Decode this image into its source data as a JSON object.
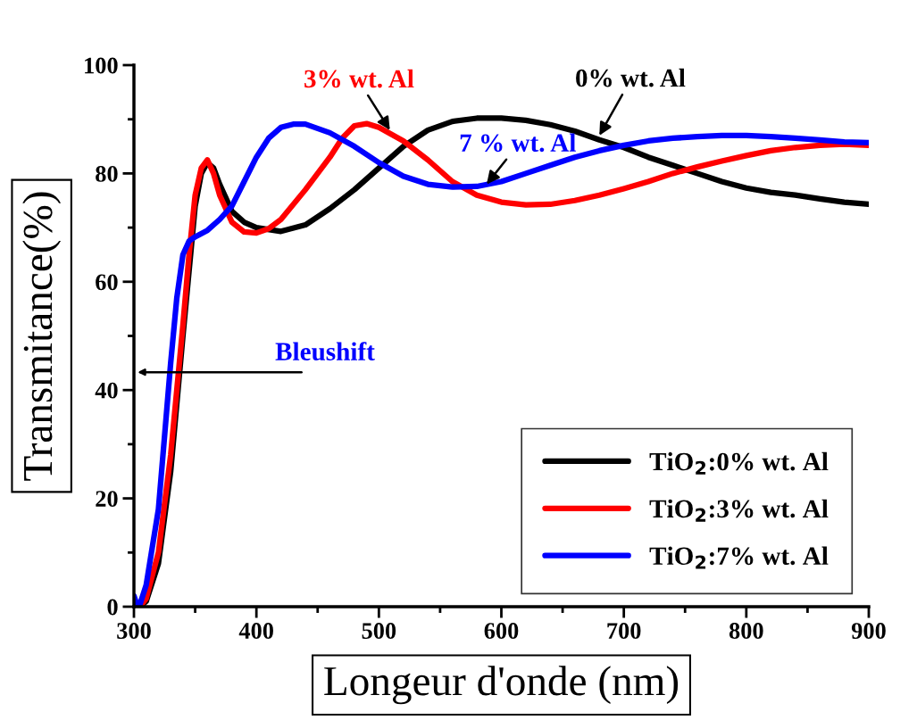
{
  "chart_data": {
    "type": "line",
    "xlabel": "Longeur d'onde (nm)",
    "ylabel": "Transmitance(%)",
    "xlim": [
      300,
      900
    ],
    "xticks": [
      300,
      400,
      500,
      600,
      700,
      800,
      900
    ],
    "ylim": [
      0,
      100
    ],
    "yticks": [
      0,
      20,
      40,
      60,
      80,
      100
    ],
    "grid": false,
    "legend": "bottom right",
    "line_style": "solid",
    "marker": "none",
    "x": [
      300,
      305,
      310,
      320,
      330,
      340,
      345,
      350,
      355,
      360,
      365,
      370,
      380,
      390,
      400,
      420,
      440,
      460,
      480,
      500,
      520,
      540,
      560,
      580,
      600,
      620,
      640,
      660,
      680,
      700,
      720,
      740,
      760,
      780,
      800,
      820,
      840,
      860,
      880,
      900
    ],
    "series": [
      {
        "name": "TiO$_{2}$:0% wt. Al",
        "color": "#000000",
        "values": [
          0,
          0,
          1,
          8,
          25,
          50,
          62,
          74,
          80,
          82,
          81,
          78,
          73,
          71,
          70,
          69.3,
          70.5,
          73.5,
          77,
          81,
          85,
          88,
          89.6,
          90.2,
          90.2,
          89.8,
          89,
          87.8,
          86.2,
          84.8,
          83,
          81.5,
          80,
          78.5,
          77.3,
          76.5,
          76,
          75.3,
          74.7,
          74.3
        ]
      },
      {
        "name": "TiO$_{2}$:3% wt. Al",
        "color": "#ff0000",
        "x": [
          300,
          305,
          310,
          320,
          330,
          340,
          345,
          350,
          355,
          360,
          365,
          370,
          380,
          390,
          400,
          410,
          420,
          440,
          460,
          470,
          480,
          490,
          500,
          520,
          540,
          560,
          580,
          600,
          620,
          640,
          660,
          680,
          700,
          720,
          740,
          760,
          780,
          800,
          820,
          840,
          860,
          880,
          900
        ],
        "values": [
          0,
          0,
          1.5,
          10,
          28,
          52,
          65,
          76,
          81,
          82.5,
          80,
          76,
          71,
          69.2,
          69,
          69.8,
          71.5,
          77,
          83,
          86.5,
          88.8,
          89.2,
          88.5,
          86,
          82.5,
          78.5,
          76,
          74.7,
          74.2,
          74.3,
          75,
          76,
          77.2,
          78.5,
          80,
          81.2,
          82.3,
          83.3,
          84.2,
          84.8,
          85.2,
          85.4,
          85.2
        ]
      },
      {
        "name": "TiO$_{2}$:7% wt. Al",
        "color": "#0000ff",
        "x": [
          300,
          303,
          305,
          310,
          320,
          330,
          335,
          340,
          345,
          350,
          360,
          370,
          380,
          390,
          400,
          410,
          420,
          430,
          440,
          460,
          480,
          500,
          520,
          540,
          560,
          580,
          600,
          620,
          640,
          660,
          680,
          700,
          720,
          740,
          760,
          780,
          800,
          820,
          840,
          860,
          880,
          900
        ],
        "values": [
          2,
          0,
          0.5,
          4,
          18,
          45,
          57,
          65,
          67.5,
          68.3,
          69.5,
          71.5,
          74,
          78.5,
          83,
          86.5,
          88.5,
          89.1,
          89.1,
          87.5,
          85,
          82,
          79.5,
          78,
          77.5,
          77.6,
          78.5,
          80,
          81.5,
          83,
          84.2,
          85.2,
          86,
          86.5,
          86.8,
          87,
          87,
          86.8,
          86.5,
          86.2,
          85.8,
          85.7
        ]
      }
    ],
    "annotations": [
      {
        "text": "3% wt. Al",
        "x": 509,
        "y": 88
      },
      {
        "text": "0% wt. Al",
        "x": 680,
        "y": 87
      },
      {
        "text": "7 % wt. Al",
        "x": 588,
        "y": 78
      },
      "Bleushift"
    ]
  }
}
